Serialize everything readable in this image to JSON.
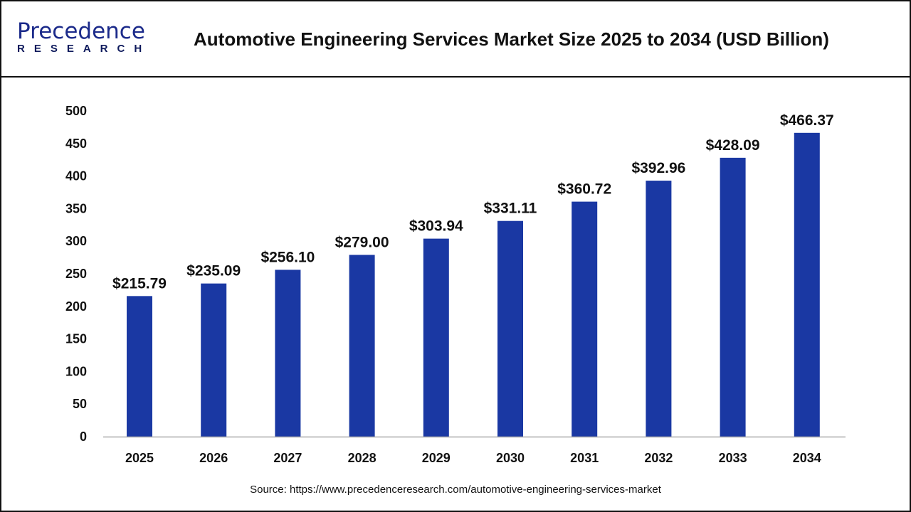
{
  "header": {
    "logo_text": "Precedence",
    "logo_sub": "RESEARCH",
    "title": "Automotive Engineering Services Market Size 2025 to 2034 (USD Billion)"
  },
  "source": "Source: https://www.precedenceresearch.com/automotive-engineering-services-market",
  "chart_data": {
    "type": "bar",
    "title": "Automotive Engineering Services Market Size 2025 to 2034 (USD Billion)",
    "categories": [
      "2025",
      "2026",
      "2027",
      "2028",
      "2029",
      "2030",
      "2031",
      "2032",
      "2033",
      "2034"
    ],
    "values": [
      215.79,
      235.09,
      256.1,
      279.0,
      303.94,
      331.11,
      360.72,
      392.96,
      428.09,
      466.37
    ],
    "data_labels": [
      "$215.79",
      "$235.09",
      "$256.10",
      "$279.00",
      "$303.94",
      "$331.11",
      "$360.72",
      "$392.96",
      "$428.09",
      "$466.37"
    ],
    "yticks": [
      0,
      50,
      100,
      150,
      200,
      250,
      300,
      350,
      400,
      450,
      500
    ],
    "ylim": [
      0,
      500
    ],
    "grid": false,
    "bar_color": "#1a38a3",
    "xlabel": "",
    "ylabel": ""
  }
}
